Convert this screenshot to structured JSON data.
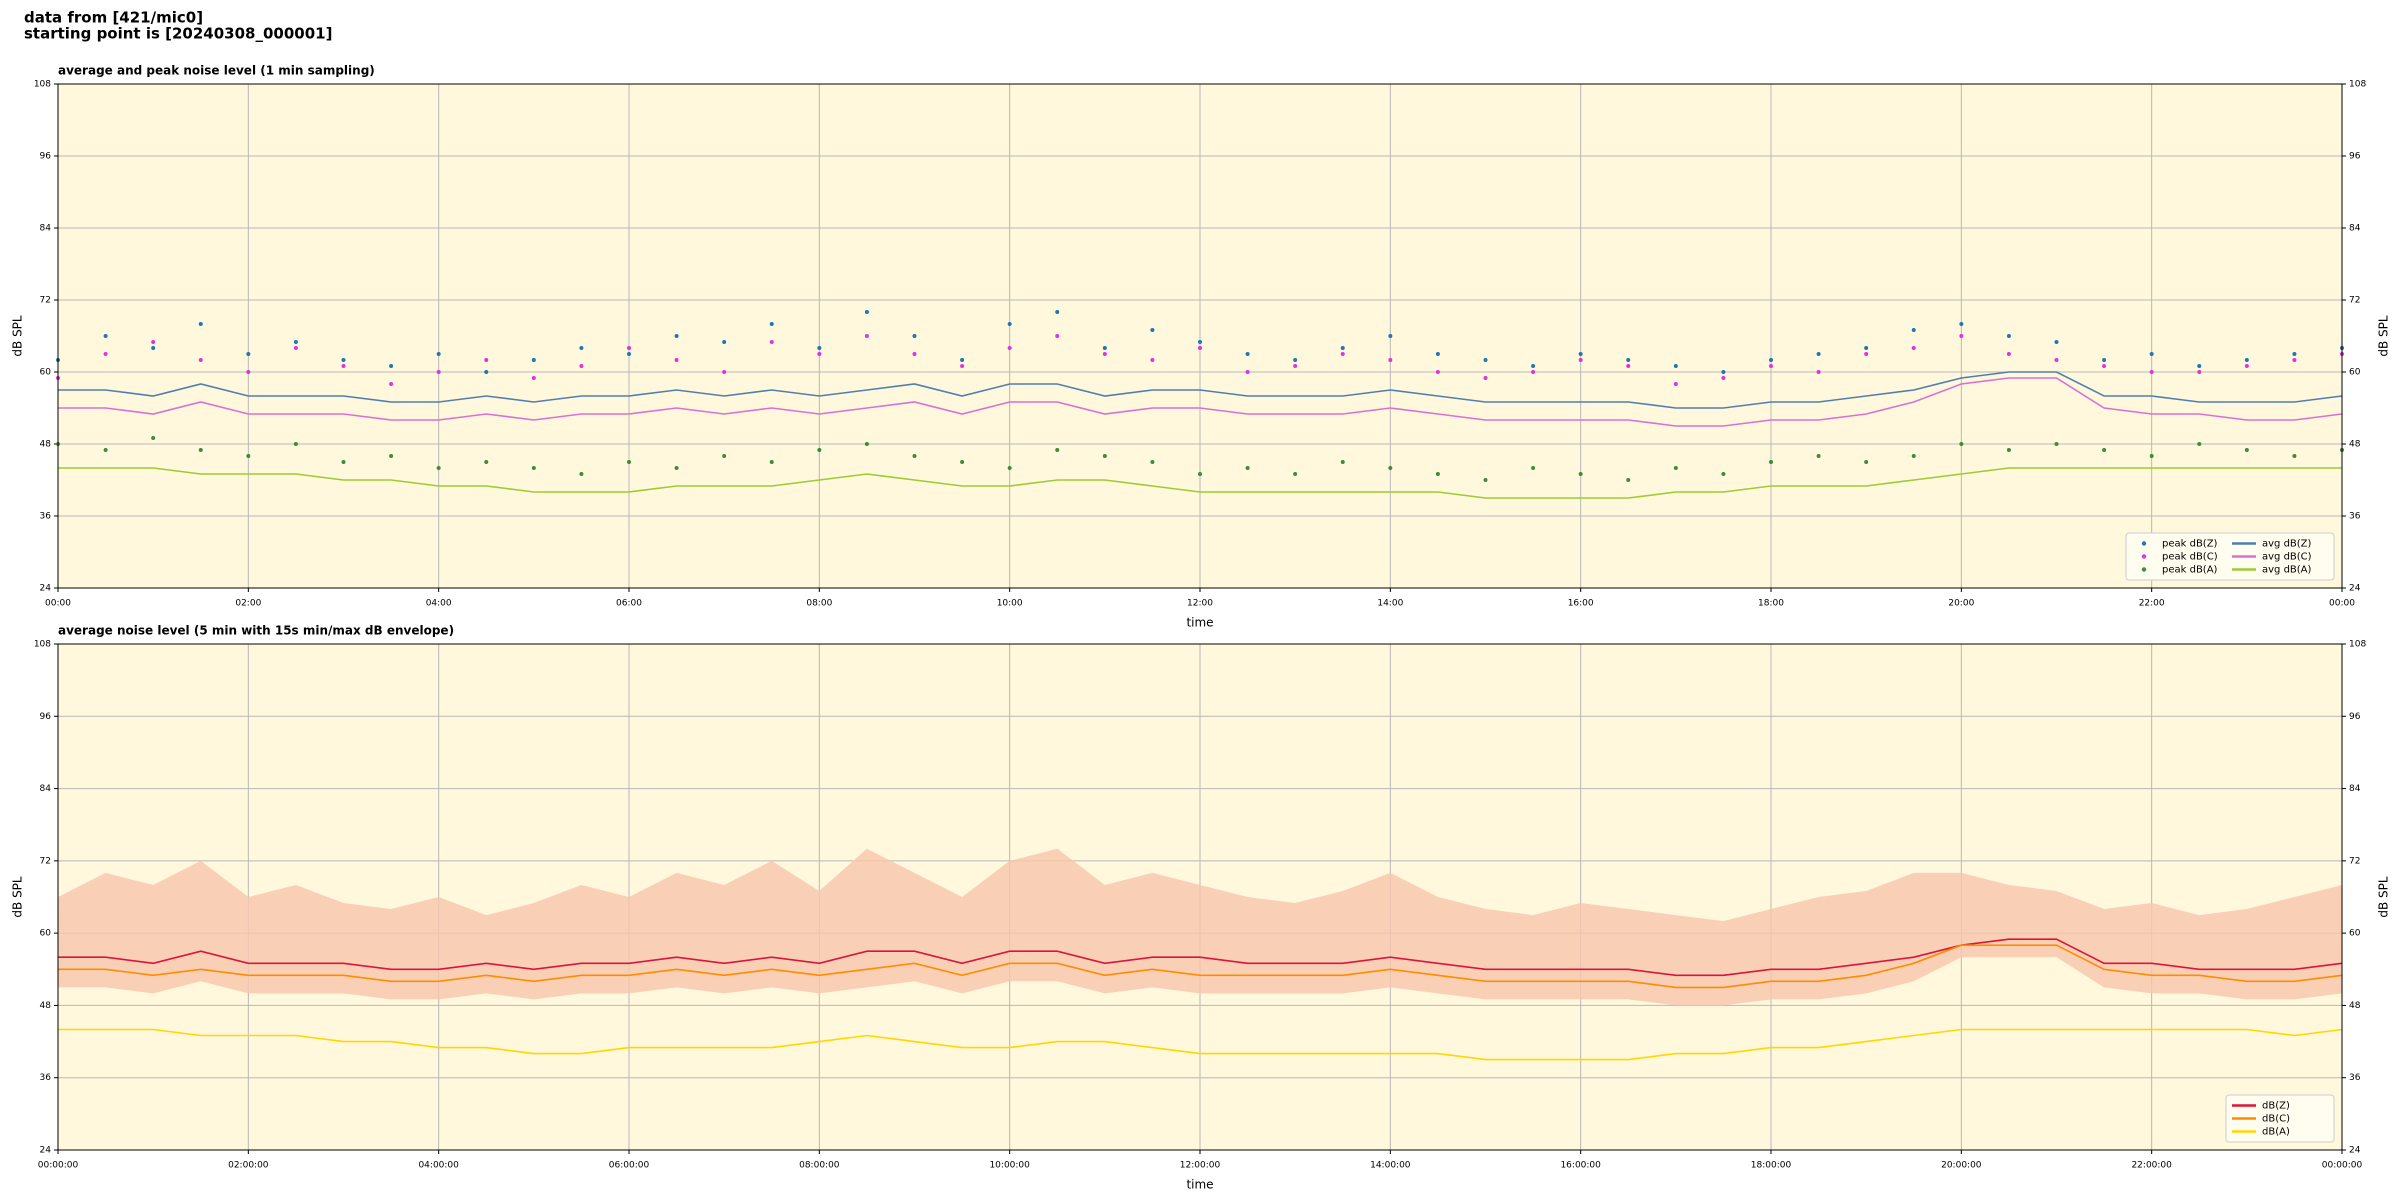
{
  "header": [
    "data from [421/mic0]",
    "starting point is [20240308_000001]"
  ],
  "chart_data": [
    {
      "type": "line",
      "title": "average and peak noise level (1 min sampling)",
      "x_label": "time",
      "y_label": "dB SPL",
      "x": [
        0,
        0.5,
        1,
        1.5,
        2,
        2.5,
        3,
        3.5,
        4,
        4.5,
        5,
        5.5,
        6,
        6.5,
        7,
        7.5,
        8,
        8.5,
        9,
        9.5,
        10,
        10.5,
        11,
        11.5,
        12,
        12.5,
        13,
        13.5,
        14,
        14.5,
        15,
        15.5,
        16,
        16.5,
        17,
        17.5,
        18,
        18.5,
        19,
        19.5,
        20,
        20.5,
        21,
        21.5,
        22,
        22.5,
        23,
        23.5,
        24
      ],
      "xlim": [
        0,
        24
      ],
      "xticks": [
        {
          "value": 0,
          "label": "00:00"
        },
        {
          "value": 2,
          "label": "02:00"
        },
        {
          "value": 4,
          "label": "04:00"
        },
        {
          "value": 6,
          "label": "06:00"
        },
        {
          "value": 8,
          "label": "08:00"
        },
        {
          "value": 10,
          "label": "10:00"
        },
        {
          "value": 12,
          "label": "12:00"
        },
        {
          "value": 14,
          "label": "14:00"
        },
        {
          "value": 16,
          "label": "16:00"
        },
        {
          "value": 18,
          "label": "18:00"
        },
        {
          "value": 20,
          "label": "20:00"
        },
        {
          "value": 22,
          "label": "22:00"
        },
        {
          "value": 24,
          "label": "00:00"
        }
      ],
      "ylim": [
        24,
        108
      ],
      "yticks": [
        24,
        36,
        48,
        60,
        72,
        84,
        96,
        108
      ],
      "grid": true,
      "legend": "lower right",
      "background": "#fff8dc",
      "series": [
        {
          "name": "peak dB(Z)",
          "color": "#1f77b4",
          "style": "points",
          "values": [
            62,
            66,
            64,
            68,
            63,
            65,
            62,
            61,
            63,
            60,
            62,
            64,
            63,
            66,
            65,
            68,
            64,
            70,
            66,
            62,
            68,
            70,
            64,
            67,
            65,
            63,
            62,
            64,
            66,
            63,
            62,
            61,
            63,
            62,
            61,
            60,
            62,
            63,
            64,
            67,
            68,
            66,
            65,
            62,
            63,
            61,
            62,
            63,
            64
          ]
        },
        {
          "name": "peak dB(C)",
          "color": "#e032e0",
          "style": "points",
          "values": [
            59,
            63,
            65,
            62,
            60,
            64,
            61,
            58,
            60,
            62,
            59,
            61,
            64,
            62,
            60,
            65,
            63,
            66,
            63,
            61,
            64,
            66,
            63,
            62,
            64,
            60,
            61,
            63,
            62,
            60,
            59,
            60,
            62,
            61,
            58,
            59,
            61,
            60,
            63,
            64,
            66,
            63,
            62,
            61,
            60,
            60,
            61,
            62,
            63
          ]
        },
        {
          "name": "peak dB(A)",
          "color": "#3d8b3d",
          "style": "points",
          "values": [
            48,
            47,
            49,
            47,
            46,
            48,
            45,
            46,
            44,
            45,
            44,
            43,
            45,
            44,
            46,
            45,
            47,
            48,
            46,
            45,
            44,
            47,
            46,
            45,
            43,
            44,
            43,
            45,
            44,
            43,
            42,
            44,
            43,
            42,
            44,
            43,
            45,
            46,
            45,
            46,
            48,
            47,
            48,
            47,
            46,
            48,
            47,
            46,
            47
          ]
        },
        {
          "name": "avg dB(Z)",
          "color": "#4f7fb0",
          "style": "line",
          "values": [
            57,
            57,
            56,
            58,
            56,
            56,
            56,
            55,
            55,
            56,
            55,
            56,
            56,
            57,
            56,
            57,
            56,
            57,
            58,
            56,
            58,
            58,
            56,
            57,
            57,
            56,
            56,
            56,
            57,
            56,
            55,
            55,
            55,
            55,
            54,
            54,
            55,
            55,
            56,
            57,
            59,
            60,
            60,
            56,
            56,
            55,
            55,
            55,
            56
          ]
        },
        {
          "name": "avg dB(C)",
          "color": "#da70d6",
          "style": "line",
          "values": [
            54,
            54,
            53,
            55,
            53,
            53,
            53,
            52,
            52,
            53,
            52,
            53,
            53,
            54,
            53,
            54,
            53,
            54,
            55,
            53,
            55,
            55,
            53,
            54,
            54,
            53,
            53,
            53,
            54,
            53,
            52,
            52,
            52,
            52,
            51,
            51,
            52,
            52,
            53,
            55,
            58,
            59,
            59,
            54,
            53,
            53,
            52,
            52,
            53
          ]
        },
        {
          "name": "avg dB(A)",
          "color": "#9acd32",
          "style": "line",
          "values": [
            44,
            44,
            44,
            43,
            43,
            43,
            42,
            42,
            41,
            41,
            40,
            40,
            40,
            41,
            41,
            41,
            42,
            43,
            42,
            41,
            41,
            42,
            42,
            41,
            40,
            40,
            40,
            40,
            40,
            40,
            39,
            39,
            39,
            39,
            40,
            40,
            41,
            41,
            41,
            42,
            43,
            44,
            44,
            44,
            44,
            44,
            44,
            44,
            44
          ]
        }
      ]
    },
    {
      "type": "line",
      "title": "average noise level (5 min with 15s min/max dB envelope)",
      "x_label": "time",
      "y_label": "dB SPL",
      "x": [
        0,
        0.5,
        1,
        1.5,
        2,
        2.5,
        3,
        3.5,
        4,
        4.5,
        5,
        5.5,
        6,
        6.5,
        7,
        7.5,
        8,
        8.5,
        9,
        9.5,
        10,
        10.5,
        11,
        11.5,
        12,
        12.5,
        13,
        13.5,
        14,
        14.5,
        15,
        15.5,
        16,
        16.5,
        17,
        17.5,
        18,
        18.5,
        19,
        19.5,
        20,
        20.5,
        21,
        21.5,
        22,
        22.5,
        23,
        23.5,
        24
      ],
      "xlim": [
        0,
        24
      ],
      "xticks": [
        {
          "value": 0,
          "label": "00:00:00"
        },
        {
          "value": 2,
          "label": "02:00:00"
        },
        {
          "value": 4,
          "label": "04:00:00"
        },
        {
          "value": 6,
          "label": "06:00:00"
        },
        {
          "value": 8,
          "label": "08:00:00"
        },
        {
          "value": 10,
          "label": "10:00:00"
        },
        {
          "value": 12,
          "label": "12:00:00"
        },
        {
          "value": 14,
          "label": "14:00:00"
        },
        {
          "value": 16,
          "label": "16:00:00"
        },
        {
          "value": 18,
          "label": "18:00:00"
        },
        {
          "value": 20,
          "label": "20:00:00"
        },
        {
          "value": 22,
          "label": "22:00:00"
        },
        {
          "value": 24,
          "label": "00:00:00"
        }
      ],
      "ylim": [
        24,
        108
      ],
      "yticks": [
        24,
        36,
        48,
        60,
        72,
        84,
        96,
        108
      ],
      "grid": true,
      "legend": "lower right",
      "background": "#fff8dc",
      "envelope": {
        "color": "#f7c6ad",
        "low": [
          51,
          51,
          50,
          52,
          50,
          50,
          50,
          49,
          49,
          50,
          49,
          50,
          50,
          51,
          50,
          51,
          50,
          51,
          52,
          50,
          52,
          52,
          50,
          51,
          50,
          50,
          50,
          50,
          51,
          50,
          49,
          49,
          49,
          49,
          48,
          48,
          49,
          49,
          50,
          52,
          56,
          56,
          56,
          51,
          50,
          50,
          49,
          49,
          50
        ],
        "high": [
          66,
          70,
          68,
          72,
          66,
          68,
          65,
          64,
          66,
          63,
          65,
          68,
          66,
          70,
          68,
          72,
          67,
          74,
          70,
          66,
          72,
          74,
          68,
          70,
          68,
          66,
          65,
          67,
          70,
          66,
          64,
          63,
          65,
          64,
          63,
          62,
          64,
          66,
          67,
          70,
          70,
          68,
          67,
          64,
          65,
          63,
          64,
          66,
          68
        ]
      },
      "series": [
        {
          "name": "dB(Z)",
          "color": "#dc143c",
          "style": "line",
          "values": [
            56,
            56,
            55,
            57,
            55,
            55,
            55,
            54,
            54,
            55,
            54,
            55,
            55,
            56,
            55,
            56,
            55,
            57,
            57,
            55,
            57,
            57,
            55,
            56,
            56,
            55,
            55,
            55,
            56,
            55,
            54,
            54,
            54,
            54,
            53,
            53,
            54,
            54,
            55,
            56,
            58,
            59,
            59,
            55,
            55,
            54,
            54,
            54,
            55
          ]
        },
        {
          "name": "dB(C)",
          "color": "#ff8c00",
          "style": "line",
          "values": [
            54,
            54,
            53,
            54,
            53,
            53,
            53,
            52,
            52,
            53,
            52,
            53,
            53,
            54,
            53,
            54,
            53,
            54,
            55,
            53,
            55,
            55,
            53,
            54,
            53,
            53,
            53,
            53,
            54,
            53,
            52,
            52,
            52,
            52,
            51,
            51,
            52,
            52,
            53,
            55,
            58,
            58,
            58,
            54,
            53,
            53,
            52,
            52,
            53
          ]
        },
        {
          "name": "dB(A)",
          "color": "#ffd700",
          "style": "line",
          "values": [
            44,
            44,
            44,
            43,
            43,
            43,
            42,
            42,
            41,
            41,
            40,
            40,
            41,
            41,
            41,
            41,
            42,
            43,
            42,
            41,
            41,
            42,
            42,
            41,
            40,
            40,
            40,
            40,
            40,
            40,
            39,
            39,
            39,
            39,
            40,
            40,
            41,
            41,
            42,
            43,
            44,
            44,
            44,
            44,
            44,
            44,
            44,
            43,
            44
          ]
        }
      ]
    }
  ]
}
